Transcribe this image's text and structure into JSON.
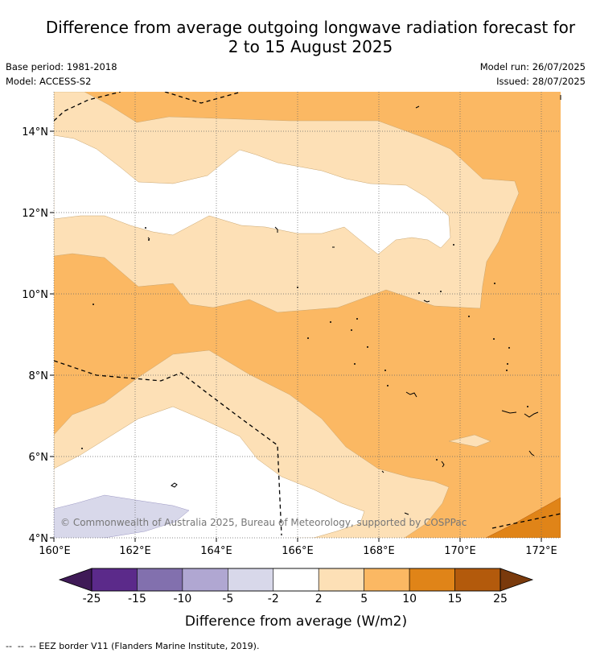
{
  "title": {
    "line1": "Difference from average outgoing longwave radiation forecast for",
    "line2": "2 to 15 August 2025"
  },
  "meta": {
    "base_period": "Base period: 1981-2018",
    "model": "Model: ACCESS-S2",
    "model_run": "Model run: 26/07/2025",
    "issued": "Issued: 28/07/2025"
  },
  "map": {
    "lon_ticks": [
      "160°E",
      "162°E",
      "164°E",
      "166°E",
      "168°E",
      "170°E",
      "172°E"
    ],
    "lat_ticks": [
      "4°N",
      "6°N",
      "8°N",
      "10°N",
      "12°N",
      "14°N"
    ],
    "copyright": "© Commonwealth of Australia 2025, Bureau of Meteorology, supported by COSPPac"
  },
  "colorbar": {
    "title": "Difference from average (W/m2)",
    "tick_labels": [
      "-25",
      "-15",
      "-10",
      "-5",
      "-2",
      "2",
      "5",
      "10",
      "15",
      "25"
    ],
    "colors": [
      "#3f1a57",
      "#5b2a8a",
      "#8270ae",
      "#b0a7d2",
      "#d8d8ea",
      "#ffffff",
      "#fde0b6",
      "#fbb863",
      "#e08418",
      "#b35a0c",
      "#7a3a0c"
    ]
  },
  "footnote": {
    "eez_marker": "--  --  --",
    "eez_text": "EEZ border V11 (Flanders Marine Institute, 2019)."
  }
}
